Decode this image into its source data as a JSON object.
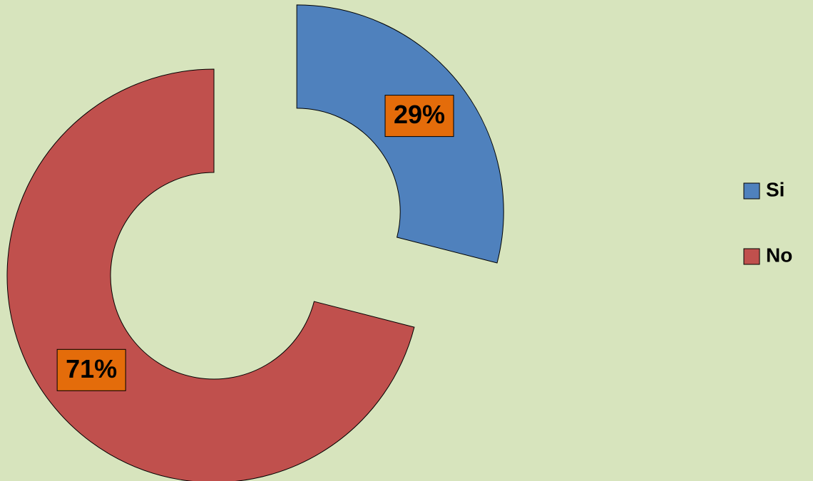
{
  "chart_data": {
    "type": "donut",
    "categories": [
      "Si",
      "No"
    ],
    "values": [
      29,
      71
    ],
    "value_labels": [
      "29%",
      "71%"
    ],
    "colors": [
      "#4f81bd",
      "#c0504d"
    ],
    "label_box_color": "#e46c0a",
    "legend": "right"
  }
}
